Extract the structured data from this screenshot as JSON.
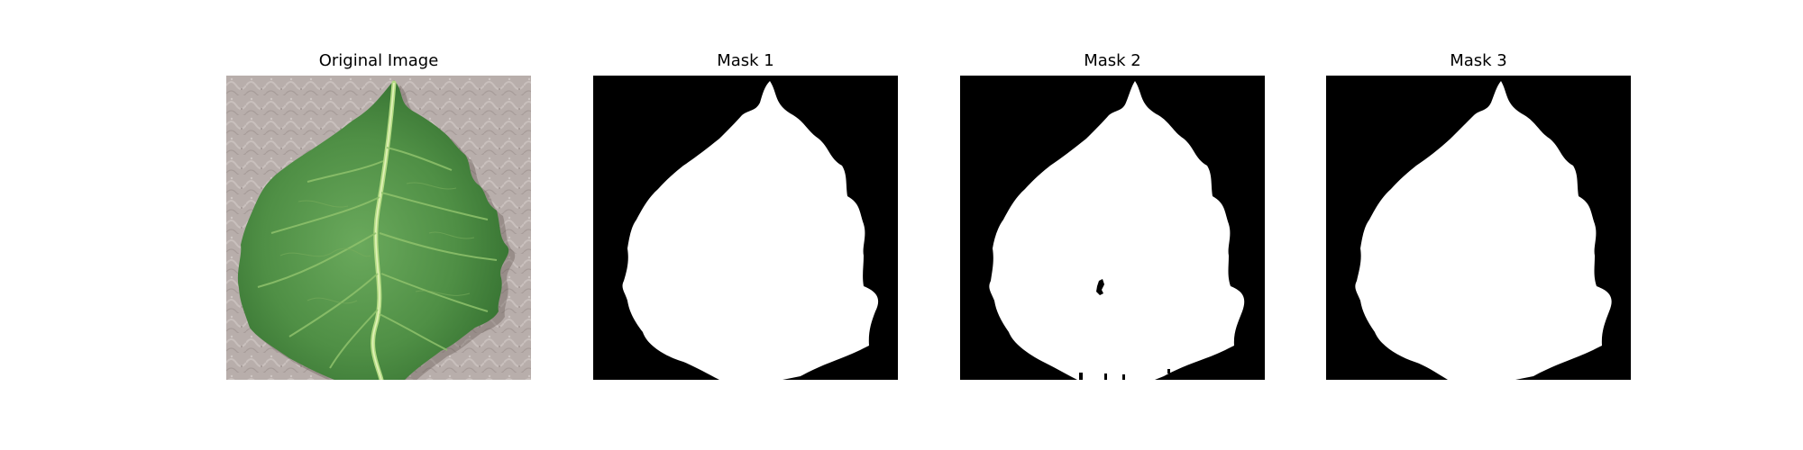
{
  "figure": {
    "panels": [
      {
        "title": "Original Image",
        "content": "photo of a green leaf on a textured beige surface"
      },
      {
        "title": "Mask 1",
        "content": "binary segmentation mask"
      },
      {
        "title": "Mask 2",
        "content": "binary segmentation mask"
      },
      {
        "title": "Mask 3",
        "content": "binary segmentation mask"
      }
    ]
  },
  "colors": {
    "background": "#ffffff",
    "mask_background": "#000000",
    "mask_foreground": "#ffffff",
    "leaf_green": "#4f8f45",
    "vein_light": "#a9d27a",
    "surface_beige": "#b5a9a6"
  }
}
